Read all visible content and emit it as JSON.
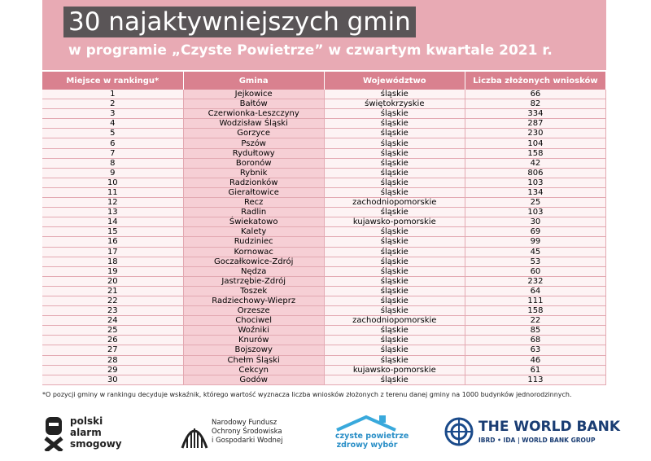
{
  "header": {
    "title": "30 najaktywniejszych gmin",
    "subtitle": "w programie „Czyste Powietrze” w czwartym kwartale 2021 r."
  },
  "table": {
    "columns": [
      "Miejsce w rankingu*",
      "Gmina",
      "Województwo",
      "Liczba złożonych wniosków"
    ],
    "rows": [
      [
        1,
        "Jejkowice",
        "śląskie",
        66
      ],
      [
        2,
        "Bałtów",
        "świętokrzyskie",
        82
      ],
      [
        3,
        "Czerwionka-Leszczyny",
        "śląskie",
        334
      ],
      [
        4,
        "Wodzisław Śląski",
        "śląskie",
        287
      ],
      [
        5,
        "Gorzyce",
        "śląskie",
        230
      ],
      [
        6,
        "Pszów",
        "śląskie",
        104
      ],
      [
        7,
        "Rydułtowy",
        "śląskie",
        158
      ],
      [
        8,
        "Boronów",
        "śląskie",
        42
      ],
      [
        9,
        "Rybnik",
        "śląskie",
        806
      ],
      [
        10,
        "Radzionków",
        "śląskie",
        103
      ],
      [
        11,
        "Gierałtowice",
        "śląskie",
        134
      ],
      [
        12,
        "Recz",
        "zachodniopomorskie",
        25
      ],
      [
        13,
        "Radlin",
        "śląskie",
        103
      ],
      [
        14,
        "Świekatowo",
        "kujawsko-pomorskie",
        30
      ],
      [
        15,
        "Kalety",
        "śląskie",
        69
      ],
      [
        16,
        "Rudziniec",
        "śląskie",
        99
      ],
      [
        17,
        "Kornowac",
        "śląskie",
        45
      ],
      [
        18,
        "Goczałkowice-Zdrój",
        "śląskie",
        53
      ],
      [
        19,
        "Nędza",
        "śląskie",
        60
      ],
      [
        20,
        "Jastrzębie-Zdrój",
        "śląskie",
        232
      ],
      [
        21,
        "Toszek",
        "śląskie",
        64
      ],
      [
        22,
        "Radziechowy-Wieprz",
        "śląskie",
        111
      ],
      [
        23,
        "Orzesze",
        "śląskie",
        158
      ],
      [
        24,
        "Chociwel",
        "zachodniopomorskie",
        22
      ],
      [
        25,
        "Woźniki",
        "śląskie",
        85
      ],
      [
        26,
        "Knurów",
        "śląskie",
        68
      ],
      [
        27,
        "Bojszowy",
        "śląskie",
        63
      ],
      [
        28,
        "Chełm Śląski",
        "śląskie",
        46
      ],
      [
        29,
        "Cekcyn",
        "kujawsko-pomorskie",
        61
      ],
      [
        30,
        "Godów",
        "śląskie",
        113
      ]
    ]
  },
  "footnote": "*O pozycji gminy w rankingu decyduje wskaźnik, którego wartość wyznacza liczba wniosków złożonych z terenu danej gminy na 1000 budynków jednorodzinnych.",
  "logos": {
    "pas": [
      "polski",
      "alarm",
      "smogowy"
    ],
    "nfos": [
      "Narodowy Fundusz",
      "Ochrony Środowiska",
      "i Gospodarki Wodnej"
    ],
    "cp": [
      "czyste powietrze",
      "zdrowy wybór"
    ],
    "wb": {
      "name": "THE WORLD BANK",
      "sub": "IBRD • IDA | WORLD BANK GROUP"
    }
  }
}
